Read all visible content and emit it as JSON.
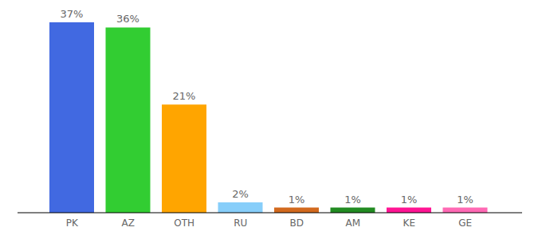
{
  "chart_data": {
    "type": "bar",
    "categories": [
      "PK",
      "AZ",
      "OTH",
      "RU",
      "BD",
      "AM",
      "KE",
      "GE"
    ],
    "values": [
      37,
      36,
      21,
      2,
      1,
      1,
      1,
      1
    ],
    "value_labels": [
      "37%",
      "36%",
      "21%",
      "2%",
      "1%",
      "1%",
      "1%",
      "1%"
    ],
    "colors": [
      "#4169e1",
      "#32cd32",
      "#ffa500",
      "#87cefa",
      "#d2691e",
      "#228b22",
      "#ff1493",
      "#ff69b4"
    ],
    "ylim": [
      0,
      37
    ],
    "grid": false,
    "data_labels": true,
    "tick_labels": "x"
  }
}
